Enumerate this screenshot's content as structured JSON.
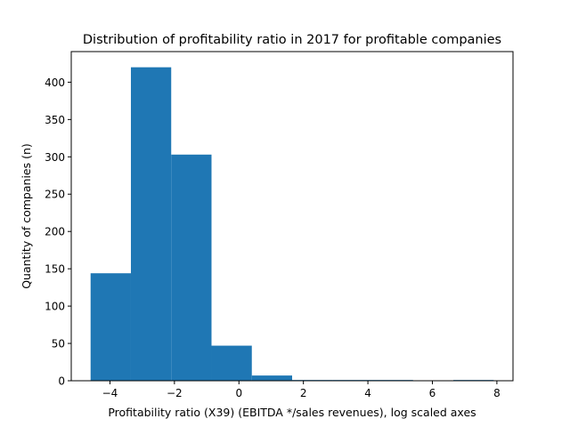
{
  "chart_data": {
    "type": "bar",
    "title": "Distribution of profitability ratio in 2017 for profitable companies",
    "xlabel": "Profitability ratio (X39) (EBITDA */sales revenues), log scaled axes",
    "ylabel": "Quantity of companies (n)",
    "xlim": [
      -5.2,
      8.5
    ],
    "ylim": [
      0,
      441
    ],
    "xticks": [
      -4,
      -2,
      0,
      2,
      4,
      6,
      8
    ],
    "yticks": [
      0,
      50,
      100,
      150,
      200,
      250,
      300,
      350,
      400
    ],
    "bin_edges": [
      -4.6,
      -3.35,
      -2.1,
      -0.85,
      0.4,
      1.65,
      2.9,
      4.15,
      5.4,
      6.65,
      7.9
    ],
    "values": [
      144,
      420,
      303,
      47,
      7,
      1,
      1,
      1,
      0,
      1
    ],
    "bar_color": "#1f77b4",
    "grid": false,
    "legend": "none"
  }
}
